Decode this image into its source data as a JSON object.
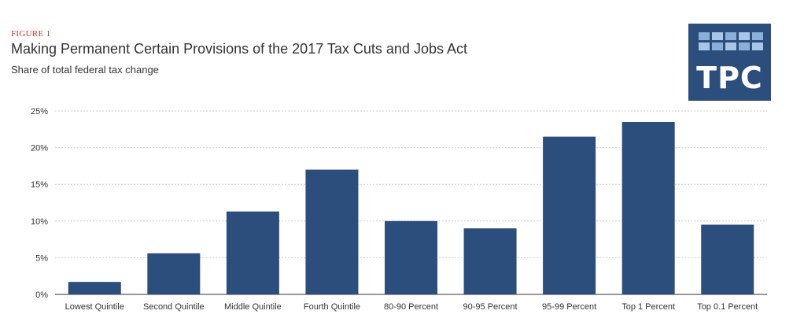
{
  "figure_label": "FIGURE 1",
  "logo_text": "TPC",
  "colors": {
    "bar": "#2c4e7c",
    "accent": "#c0392b",
    "logo_bg": "#2c4e7c"
  },
  "chart_data": {
    "type": "bar",
    "title": "Making Permanent Certain Provisions of the 2017 Tax Cuts and Jobs Act",
    "subtitle": "Share of total federal tax change",
    "xlabel": "",
    "ylabel": "",
    "categories": [
      "Lowest Quintile",
      "Second Quintile",
      "Middle Quintile",
      "Fourth Quintile",
      "80-90 Percent",
      "90-95 Percent",
      "95-99 Percent",
      "Top 1 Percent",
      "Top 0.1 Percent"
    ],
    "values": [
      1.7,
      5.6,
      11.3,
      17.0,
      10.0,
      9.0,
      21.5,
      23.5,
      9.5
    ],
    "ylim": [
      0,
      25
    ],
    "yticks": [
      0,
      5,
      10,
      15,
      20,
      25
    ],
    "ytick_labels": [
      "0%",
      "5%",
      "10%",
      "15%",
      "20%",
      "25%"
    ],
    "grid": true
  }
}
